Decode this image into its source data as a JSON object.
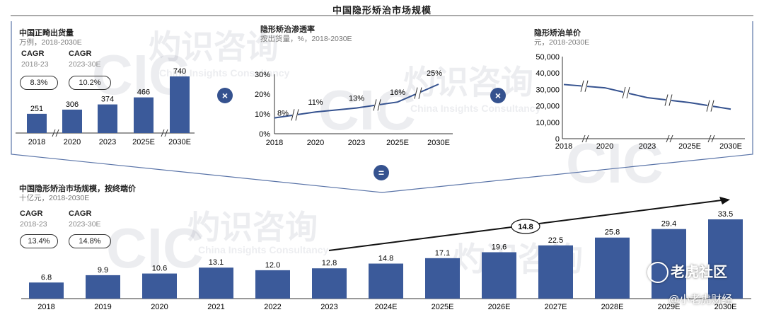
{
  "title": "中国隐形矫治市场规模",
  "watermark": {
    "main": "灼识咨询",
    "sub": "China Insights Consultancy",
    "logo": "CIC"
  },
  "operators": {
    "multiply": "×",
    "equals": "="
  },
  "panels": {
    "volume": {
      "title": "中国正畸出货量",
      "subtitle": "万例，2018-2030E",
      "cagr_label": "CAGR",
      "cagr": [
        {
          "period": "2018-23",
          "value": "8.3%"
        },
        {
          "period": "2023-30E",
          "value": "10.2%"
        }
      ]
    },
    "penetration": {
      "title": "隐形矫治渗透率",
      "subtitle": "按出货量，%，2018-2030E"
    },
    "price": {
      "title": "隐形矫治单价",
      "subtitle": "元，2018-2030E"
    },
    "market": {
      "title": "中国隐形矫治市场规模，按终端价",
      "subtitle": "十亿元，2018-2030E",
      "cagr_label": "CAGR",
      "cagr": [
        {
          "period": "2018-23",
          "value": "13.4%"
        },
        {
          "period": "2023-30E",
          "value": "14.8%"
        }
      ],
      "arrow_label": "14.8"
    }
  },
  "chart_data": [
    {
      "type": "bar",
      "id": "volume",
      "categories": [
        "2018",
        "2020",
        "2023",
        "2025E",
        "2030E"
      ],
      "values": [
        251,
        306,
        374,
        466,
        740
      ],
      "axis_breaks_after": [
        "2018",
        "2025E"
      ],
      "color": "#3b5a9a"
    },
    {
      "type": "line",
      "id": "penetration",
      "categories": [
        "2018",
        "2020",
        "2023",
        "2025E",
        "2030E"
      ],
      "values": [
        8,
        11,
        13,
        16,
        25
      ],
      "y_ticks": [
        "0%",
        "10%",
        "20%",
        "30%"
      ],
      "ylim": [
        0,
        30
      ],
      "grid": false,
      "color": "#35528f"
    },
    {
      "type": "line",
      "id": "price",
      "categories": [
        "2018",
        "2020",
        "2023",
        "2025E",
        "2030E"
      ],
      "values": [
        33000,
        31000,
        25000,
        22000,
        18000
      ],
      "y_ticks": [
        "0",
        "10,000",
        "20,000",
        "30,000",
        "40,000",
        "50,000"
      ],
      "ylim": [
        0,
        50000
      ],
      "grid": false,
      "color": "#35528f"
    },
    {
      "type": "bar",
      "id": "market",
      "categories": [
        "2018",
        "2019",
        "2020",
        "2021",
        "2022",
        "2023",
        "2024E",
        "2025E",
        "2026E",
        "2027E",
        "2028E",
        "2029E",
        "2030E"
      ],
      "values": [
        6.8,
        9.9,
        10.6,
        13.1,
        12.0,
        12.8,
        14.8,
        17.1,
        19.6,
        22.5,
        25.8,
        29.4,
        33.5
      ],
      "value_labels": [
        "6.8",
        "9.9",
        "10.6",
        "13.1",
        "12.0",
        "12.8",
        "14.8",
        "17.1",
        "19.6",
        "22.5",
        "25.8",
        "29.4",
        "33.5"
      ],
      "color": "#3b5a9a"
    }
  ],
  "overlay": {
    "brand": "老虎社区",
    "handle": "@小老虎财经"
  }
}
